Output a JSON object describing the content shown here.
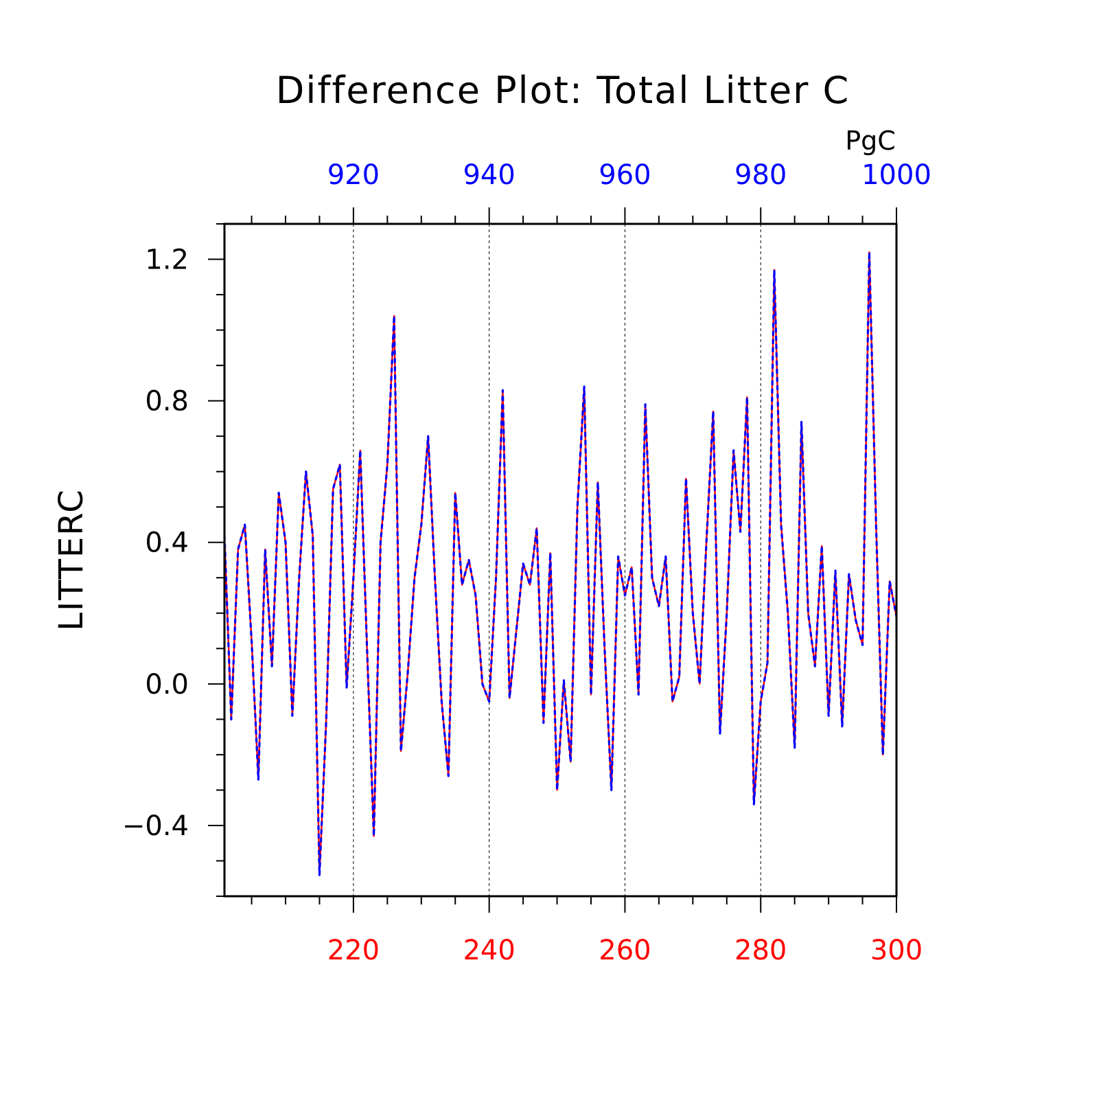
{
  "chart_data": {
    "type": "line",
    "title": "Difference Plot: Total Litter C",
    "units": "PgC",
    "ylabel": "LITTERC",
    "xlabel": "",
    "ylim": [
      -0.6,
      1.3
    ],
    "yticks": [
      -0.4,
      0.0,
      0.4,
      0.8,
      1.2
    ],
    "ytick_labels": [
      "−0.4",
      "0.0",
      "0.4",
      "0.8",
      "1.2"
    ],
    "x_bottom": {
      "range": [
        201,
        300
      ],
      "ticks": [
        220,
        240,
        260,
        280,
        300
      ],
      "tick_labels": [
        "220",
        "240",
        "260",
        "280",
        "300"
      ],
      "color": "#ff0000"
    },
    "x_top": {
      "range": [
        901,
        1000
      ],
      "ticks": [
        920,
        940,
        960,
        980,
        1000
      ],
      "tick_labels": [
        "920",
        "940",
        "960",
        "980",
        "1000"
      ],
      "color": "#0000ff"
    },
    "grid": "vertical dashed at major x ticks",
    "series": [
      {
        "color": "#ff0000",
        "style": "solid",
        "axis": "bottom",
        "x_start": 201,
        "values": [
          0.42,
          -0.1,
          0.38,
          0.45,
          0.12,
          -0.27,
          0.38,
          0.05,
          0.54,
          0.4,
          -0.09,
          0.3,
          0.6,
          0.42,
          -0.54,
          -0.1,
          0.55,
          0.62,
          -0.01,
          0.3,
          0.66,
          0.1,
          -0.43,
          0.4,
          0.62,
          1.04,
          -0.19,
          0.03,
          0.3,
          0.45,
          0.7,
          0.3,
          -0.05,
          -0.26,
          0.54,
          0.28,
          0.35,
          0.25,
          0.0,
          -0.05,
          0.3,
          0.83,
          -0.04,
          0.15,
          0.34,
          0.28,
          0.44,
          -0.11,
          0.37,
          -0.3,
          0.01,
          -0.22,
          0.5,
          0.84,
          -0.03,
          0.57,
          0.1,
          -0.3,
          0.36,
          0.25,
          0.33,
          -0.03,
          0.79,
          0.3,
          0.22,
          0.36,
          -0.05,
          0.02,
          0.58,
          0.2,
          0.0,
          0.4,
          0.77,
          -0.14,
          0.2,
          0.66,
          0.43,
          0.81,
          -0.34,
          -0.05,
          0.06,
          1.17,
          0.45,
          0.2,
          -0.18,
          0.74,
          0.2,
          0.05,
          0.39,
          -0.09,
          0.32,
          -0.12,
          0.31,
          0.18,
          0.11,
          1.22,
          0.45,
          -0.2,
          0.29,
          0.19
        ]
      },
      {
        "color": "#0000ff",
        "style": "dashed",
        "axis": "top",
        "x_start": 901,
        "values": [
          0.42,
          -0.1,
          0.38,
          0.45,
          0.12,
          -0.27,
          0.38,
          0.05,
          0.54,
          0.4,
          -0.09,
          0.3,
          0.6,
          0.42,
          -0.54,
          -0.1,
          0.55,
          0.62,
          -0.01,
          0.3,
          0.66,
          0.1,
          -0.43,
          0.4,
          0.62,
          1.04,
          -0.19,
          0.03,
          0.3,
          0.45,
          0.7,
          0.3,
          -0.05,
          -0.26,
          0.54,
          0.28,
          0.35,
          0.25,
          0.0,
          -0.05,
          0.3,
          0.83,
          -0.04,
          0.15,
          0.34,
          0.28,
          0.44,
          -0.11,
          0.37,
          -0.3,
          0.01,
          -0.22,
          0.5,
          0.84,
          -0.03,
          0.57,
          0.1,
          -0.3,
          0.36,
          0.25,
          0.33,
          -0.03,
          0.79,
          0.3,
          0.22,
          0.36,
          -0.05,
          0.02,
          0.58,
          0.2,
          0.0,
          0.4,
          0.77,
          -0.14,
          0.2,
          0.66,
          0.43,
          0.81,
          -0.34,
          -0.05,
          0.06,
          1.17,
          0.45,
          0.2,
          -0.18,
          0.74,
          0.2,
          0.05,
          0.39,
          -0.09,
          0.32,
          -0.12,
          0.31,
          0.18,
          0.11,
          1.22,
          0.45,
          -0.2,
          0.29,
          0.19
        ]
      }
    ]
  }
}
